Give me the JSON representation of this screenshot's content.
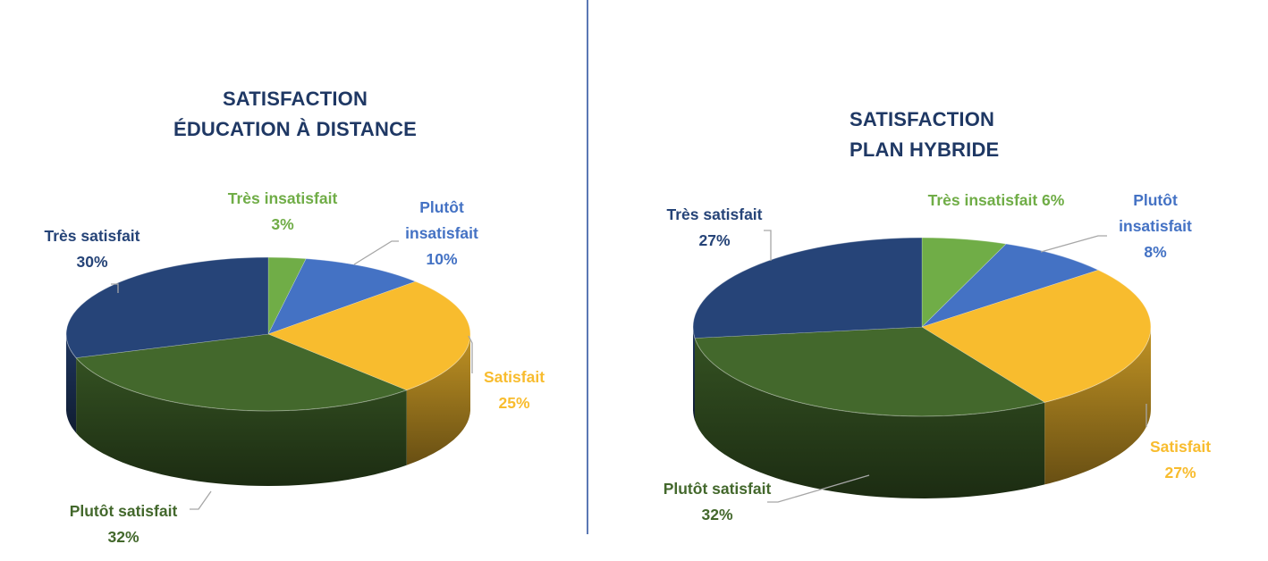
{
  "charts": [
    {
      "title_line1": "SATISFACTION",
      "title_line2": "ÉDUCATION À DISTANCE",
      "labels": [
        {
          "name": "Très insatisfait",
          "pct": "3%"
        },
        {
          "name": "Plutôt",
          "name2": "insatisfait",
          "pct": "10%"
        },
        {
          "name": "Satisfait",
          "pct": "25%"
        },
        {
          "name": "Plutôt satisfait",
          "pct": "32%"
        },
        {
          "name": "Très satisfait",
          "pct": "30%"
        }
      ]
    },
    {
      "title_line1": "SATISFACTION",
      "title_line2": "PLAN HYBRIDE",
      "labels": [
        {
          "name": "Très insatisfait 6%"
        },
        {
          "name": "Plutôt",
          "name2": "insatisfait",
          "pct": "8%"
        },
        {
          "name": "Satisfait",
          "pct": "27%"
        },
        {
          "name": "Plutôt satisfait",
          "pct": "32%"
        },
        {
          "name": "Très satisfait",
          "pct": "27%"
        }
      ]
    }
  ],
  "chart_data": [
    {
      "type": "pie",
      "title": "SATISFACTION ÉDUCATION À DISTANCE",
      "categories": [
        "Très insatisfait",
        "Plutôt insatisfait",
        "Satisfait",
        "Plutôt satisfait",
        "Très satisfait"
      ],
      "values": [
        3,
        10,
        25,
        32,
        30
      ],
      "colors": [
        "#70ad47",
        "#4472c4",
        "#f8bc2e",
        "#43682c",
        "#264478"
      ],
      "style": "3d"
    },
    {
      "type": "pie",
      "title": "SATISFACTION PLAN HYBRIDE",
      "categories": [
        "Très insatisfait",
        "Plutôt insatisfait",
        "Satisfait",
        "Plutôt satisfait",
        "Très satisfait"
      ],
      "values": [
        6,
        8,
        27,
        32,
        27
      ],
      "colors": [
        "#70ad47",
        "#4472c4",
        "#f8bc2e",
        "#43682c",
        "#264478"
      ],
      "style": "3d"
    }
  ]
}
